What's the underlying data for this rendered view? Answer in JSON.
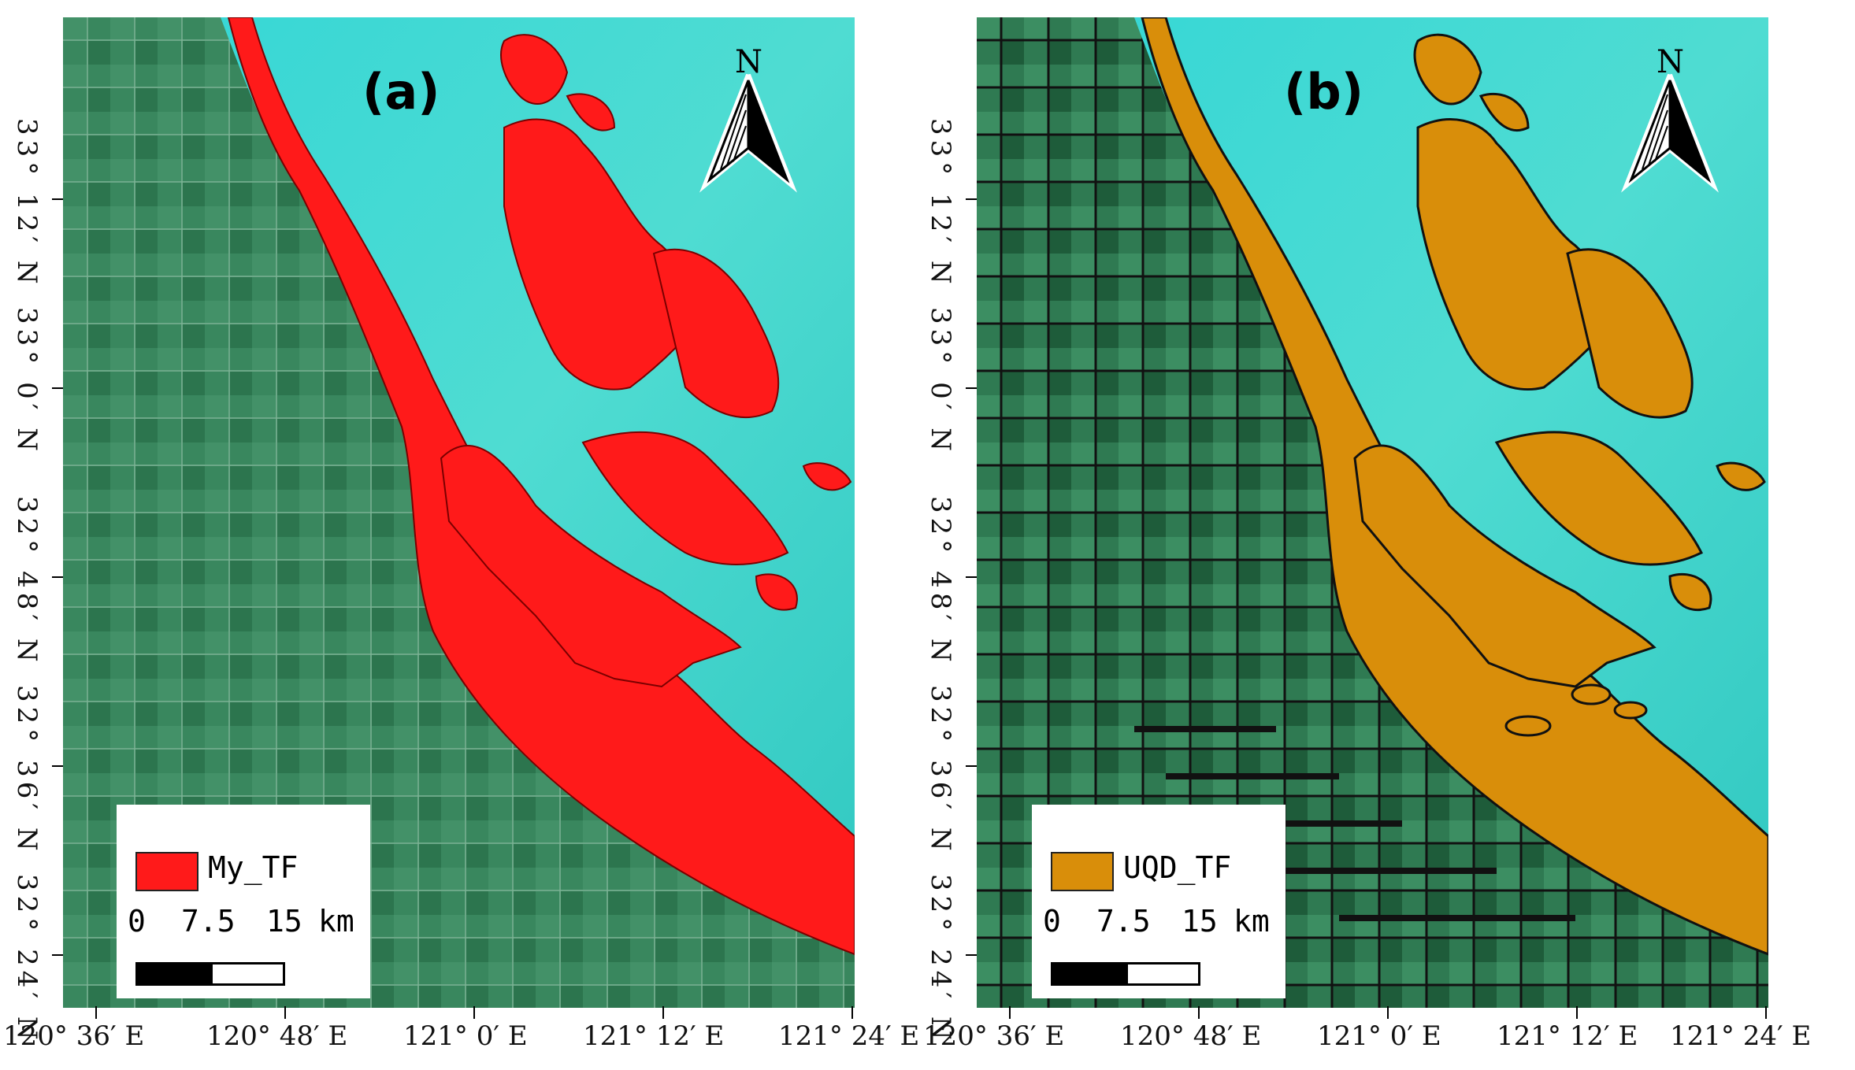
{
  "panels": [
    {
      "id": "a",
      "label": "(a)",
      "legend": {
        "name": "My_TF",
        "color": "#ff1a1a"
      },
      "scale": {
        "ticks": [
          "0",
          "7.5",
          "15"
        ],
        "unit": "km"
      },
      "north_label": "N"
    },
    {
      "id": "b",
      "label": "(b)",
      "legend": {
        "name": "UQD_TF",
        "color": "#d98e0a"
      },
      "scale": {
        "ticks": [
          "0",
          "7.5",
          "15"
        ],
        "unit": "km"
      },
      "north_label": "N"
    }
  ],
  "latitudes": [
    "33° 12′ N",
    "33° 0′ N",
    "32° 48′ N",
    "32° 36′ N",
    "32° 24′ N"
  ],
  "longitudes": [
    "120° 36′ E",
    "120° 48′ E",
    "121° 0′ E",
    "121° 12′ E",
    "121° 24′ E"
  ],
  "colors": {
    "sea": "#3ed8d8",
    "land": "#3c8e62",
    "land_dark": "#1e5c3a"
  }
}
